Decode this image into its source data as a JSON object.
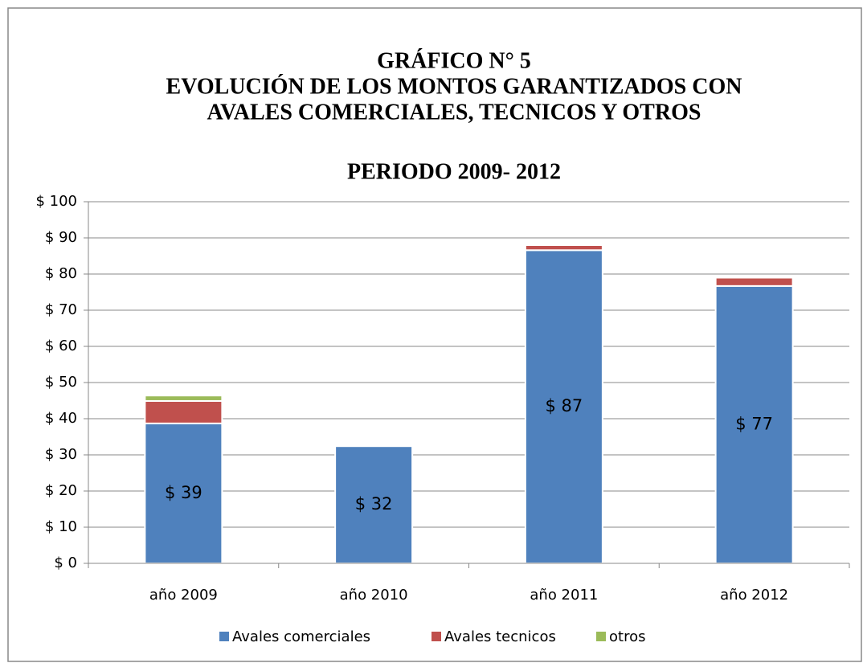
{
  "chart_data": {
    "type": "stacked_bar",
    "title": [
      "GRÁFICO N° 5",
      "EVOLUCIÓN DE LOS MONTOS GARANTIZADOS CON",
      "AVALES COMERCIALES, TECNICOS Y OTROS"
    ],
    "subtitle": "PERIODO 2009- 2012",
    "categories": [
      "año 2009",
      "año 2010",
      "año 2011",
      "año 2012"
    ],
    "series": [
      {
        "name": "Avales comerciales",
        "color": "#4f81bd",
        "values": [
          38.7,
          32.4,
          86.6,
          76.7
        ],
        "value_labels": [
          "$ 39",
          "$ 32",
          "$ 87",
          "$ 77"
        ]
      },
      {
        "name": "Avales tecnicos",
        "color": "#c0504d",
        "values": [
          6.2,
          0,
          1.4,
          2.3
        ]
      },
      {
        "name": "otros",
        "color": "#9bbb59",
        "values": [
          1.5,
          0,
          0,
          0
        ]
      }
    ],
    "ylim": [
      0,
      100
    ],
    "yticks": [
      {
        "value": 0,
        "label": "$ 0"
      },
      {
        "value": 10,
        "label": "$ 10"
      },
      {
        "value": 20,
        "label": "$ 20"
      },
      {
        "value": 30,
        "label": "$ 30"
      },
      {
        "value": 40,
        "label": "$ 40"
      },
      {
        "value": 50,
        "label": "$ 50"
      },
      {
        "value": 60,
        "label": "$ 60"
      },
      {
        "value": 70,
        "label": "$ 70"
      },
      {
        "value": 80,
        "label": "$ 80"
      },
      {
        "value": 90,
        "label": "$ 90"
      },
      {
        "value": 100,
        "label": "$ 100"
      }
    ],
    "grid": true,
    "legend": "bottom"
  }
}
